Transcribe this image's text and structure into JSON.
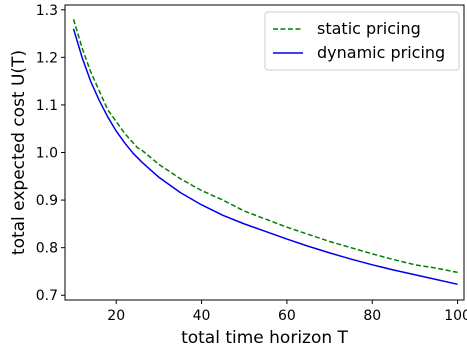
{
  "chart_data": {
    "type": "line",
    "title": "",
    "xlabel": "total time horizon T",
    "ylabel": "total expected cost U(T)",
    "xlim": [
      8,
      101.5
    ],
    "ylim": [
      0.69,
      1.31
    ],
    "xticks": [
      20,
      40,
      60,
      80,
      100
    ],
    "yticks": [
      0.7,
      0.8,
      0.9,
      1.0,
      1.1,
      1.2,
      1.3
    ],
    "xtick_labels": [
      "20",
      "40",
      "60",
      "80",
      "100"
    ],
    "ytick_labels": [
      "0.7",
      "0.8",
      "0.9",
      "1.0",
      "1.1",
      "1.2",
      "1.3"
    ],
    "grid": false,
    "legend_position": "top-right",
    "series": [
      {
        "name": "static pricing",
        "color": "#008000",
        "style": "dashed",
        "x": [
          10,
          12,
          14,
          16,
          18,
          20,
          22,
          24,
          25,
          26,
          28,
          30,
          35,
          40,
          45,
          50,
          55,
          60,
          65,
          70,
          75,
          80,
          85,
          90,
          95,
          100
        ],
        "y": [
          1.28,
          1.22,
          1.17,
          1.13,
          1.09,
          1.065,
          1.04,
          1.02,
          1.01,
          1.005,
          0.99,
          0.975,
          0.945,
          0.92,
          0.9,
          0.877,
          0.86,
          0.843,
          0.828,
          0.813,
          0.8,
          0.787,
          0.775,
          0.764,
          0.757,
          0.748
        ]
      },
      {
        "name": "dynamic pricing",
        "color": "#0000ee",
        "style": "solid",
        "x": [
          10,
          12,
          14,
          16,
          18,
          20,
          22,
          24,
          26,
          28,
          30,
          35,
          40,
          45,
          50,
          55,
          60,
          65,
          70,
          75,
          80,
          85,
          90,
          95,
          100
        ],
        "y": [
          1.26,
          1.2,
          1.15,
          1.11,
          1.075,
          1.045,
          1.02,
          0.998,
          0.98,
          0.964,
          0.948,
          0.916,
          0.89,
          0.868,
          0.85,
          0.834,
          0.818,
          0.803,
          0.789,
          0.776,
          0.764,
          0.753,
          0.743,
          0.733,
          0.723
        ]
      }
    ]
  }
}
